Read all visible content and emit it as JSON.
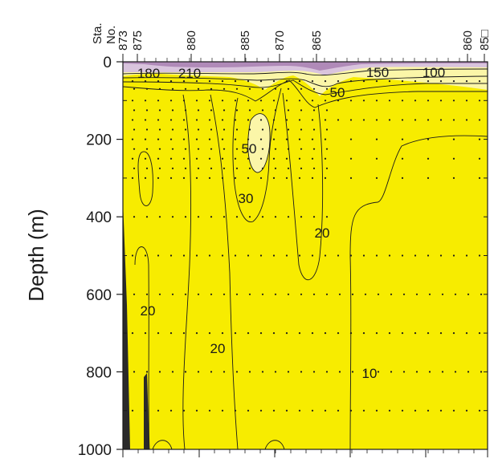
{
  "chart_data": {
    "type": "contour",
    "title": "",
    "ylabel": "Depth (m)",
    "y_axis_direction": "down",
    "ylim": [
      0,
      1000
    ],
    "y_ticks": [
      {
        "value": 0,
        "label": "0"
      },
      {
        "value": 200,
        "label": "200"
      },
      {
        "value": 400,
        "label": "400"
      },
      {
        "value": 600,
        "label": "600"
      },
      {
        "value": 800,
        "label": "800"
      },
      {
        "value": 1000,
        "label": "1000"
      }
    ],
    "station_axis": {
      "label_line1": "Sta.",
      "label_line2": "No.",
      "stations": [
        "873",
        "875",
        "880",
        "885",
        "870",
        "865",
        "860",
        "85□"
      ]
    },
    "contour_labels": [
      "180",
      "210",
      "150",
      "100",
      "50",
      "50",
      "30",
      "20",
      "20",
      "20",
      "10"
    ],
    "fill_colors": {
      "background": "#f7ec00",
      "pale_yellow": "#fbf6a8",
      "lavender": "#d9c4dd",
      "purple": "#b08ab8",
      "bathymetry": "#2a2a2a"
    },
    "sample_points_shown": true,
    "grid": false
  }
}
